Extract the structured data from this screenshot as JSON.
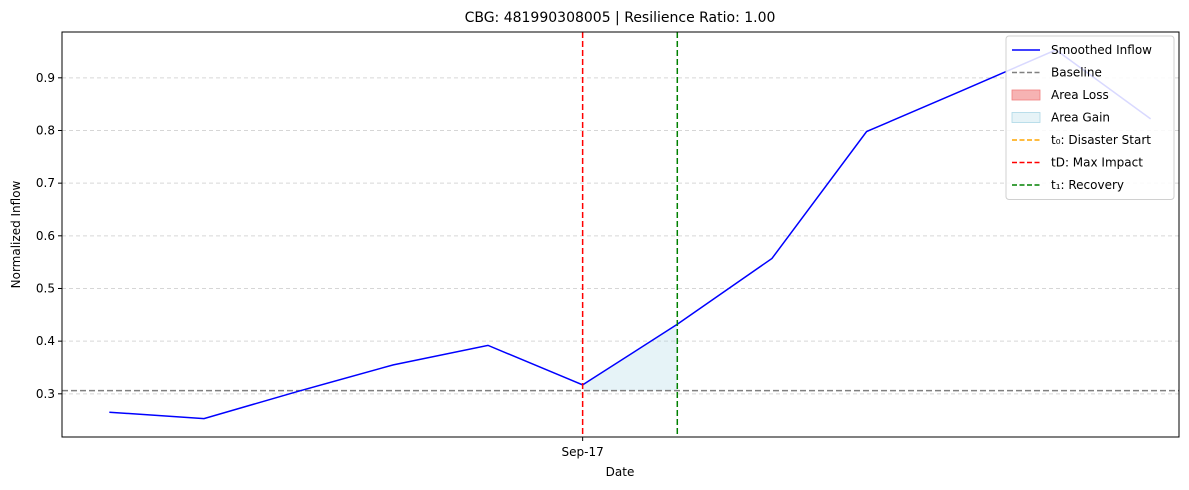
{
  "chart_data": {
    "type": "line",
    "title": "CBG: 481990308005 | Resilience Ratio: 1.00",
    "xlabel": "Date",
    "ylabel": "Normalized Inflow",
    "xlim": [
      -0.5,
      11.3
    ],
    "ylim": [
      0.218,
      0.987
    ],
    "xticks": [
      {
        "x": 5,
        "label": "Sep-17"
      }
    ],
    "yticks": [
      0.3,
      0.4,
      0.5,
      0.6,
      0.7,
      0.8,
      0.9
    ],
    "ytick_labels": [
      "0.3",
      "0.4",
      "0.5",
      "0.6",
      "0.7",
      "0.8",
      "0.9"
    ],
    "grid": {
      "y": true,
      "x": false,
      "style": "dashed"
    },
    "series": [
      {
        "name": "Smoothed Inflow",
        "color": "#0000ff",
        "x": [
          0,
          1,
          2,
          3,
          4,
          5,
          6,
          7,
          8,
          9,
          10,
          11
        ],
        "values": [
          0.265,
          0.253,
          0.305,
          0.355,
          0.392,
          0.317,
          0.432,
          0.557,
          0.798,
          0.875,
          0.953,
          0.822
        ]
      }
    ],
    "baseline": {
      "name": "Baseline",
      "value": 0.306,
      "color": "#808080"
    },
    "area_gain": {
      "name": "Area Gain",
      "x_start": 5,
      "x_end": 6,
      "color": "#add8e6"
    },
    "area_loss": {
      "name": "Area Loss",
      "color": "#f08080"
    },
    "vlines": [
      {
        "name": "t₀: Disaster Start",
        "x": 5,
        "color": "#ffa500",
        "visible": false
      },
      {
        "name": "tD: Max Impact",
        "x": 5,
        "color": "#ff0000",
        "visible": true
      },
      {
        "name": "t₁: Recovery",
        "x": 6,
        "color": "#008000",
        "visible": true
      }
    ],
    "legend": {
      "position": "top-right",
      "entries": [
        {
          "label": "Smoothed Inflow",
          "kind": "line",
          "color": "#0000ff",
          "dash": "solid"
        },
        {
          "label": "Baseline",
          "kind": "line",
          "color": "#808080",
          "dash": "dashed"
        },
        {
          "label": "Area Loss",
          "kind": "patch",
          "color": "#f08080"
        },
        {
          "label": "Area Gain",
          "kind": "patch",
          "color": "#add8e6"
        },
        {
          "label": "t₀: Disaster Start",
          "kind": "line",
          "color": "#ffa500",
          "dash": "dashed"
        },
        {
          "label": "tD: Max Impact",
          "kind": "line",
          "color": "#ff0000",
          "dash": "dashed"
        },
        {
          "label": "t₁: Recovery",
          "kind": "line",
          "color": "#008000",
          "dash": "dashed"
        }
      ]
    }
  }
}
